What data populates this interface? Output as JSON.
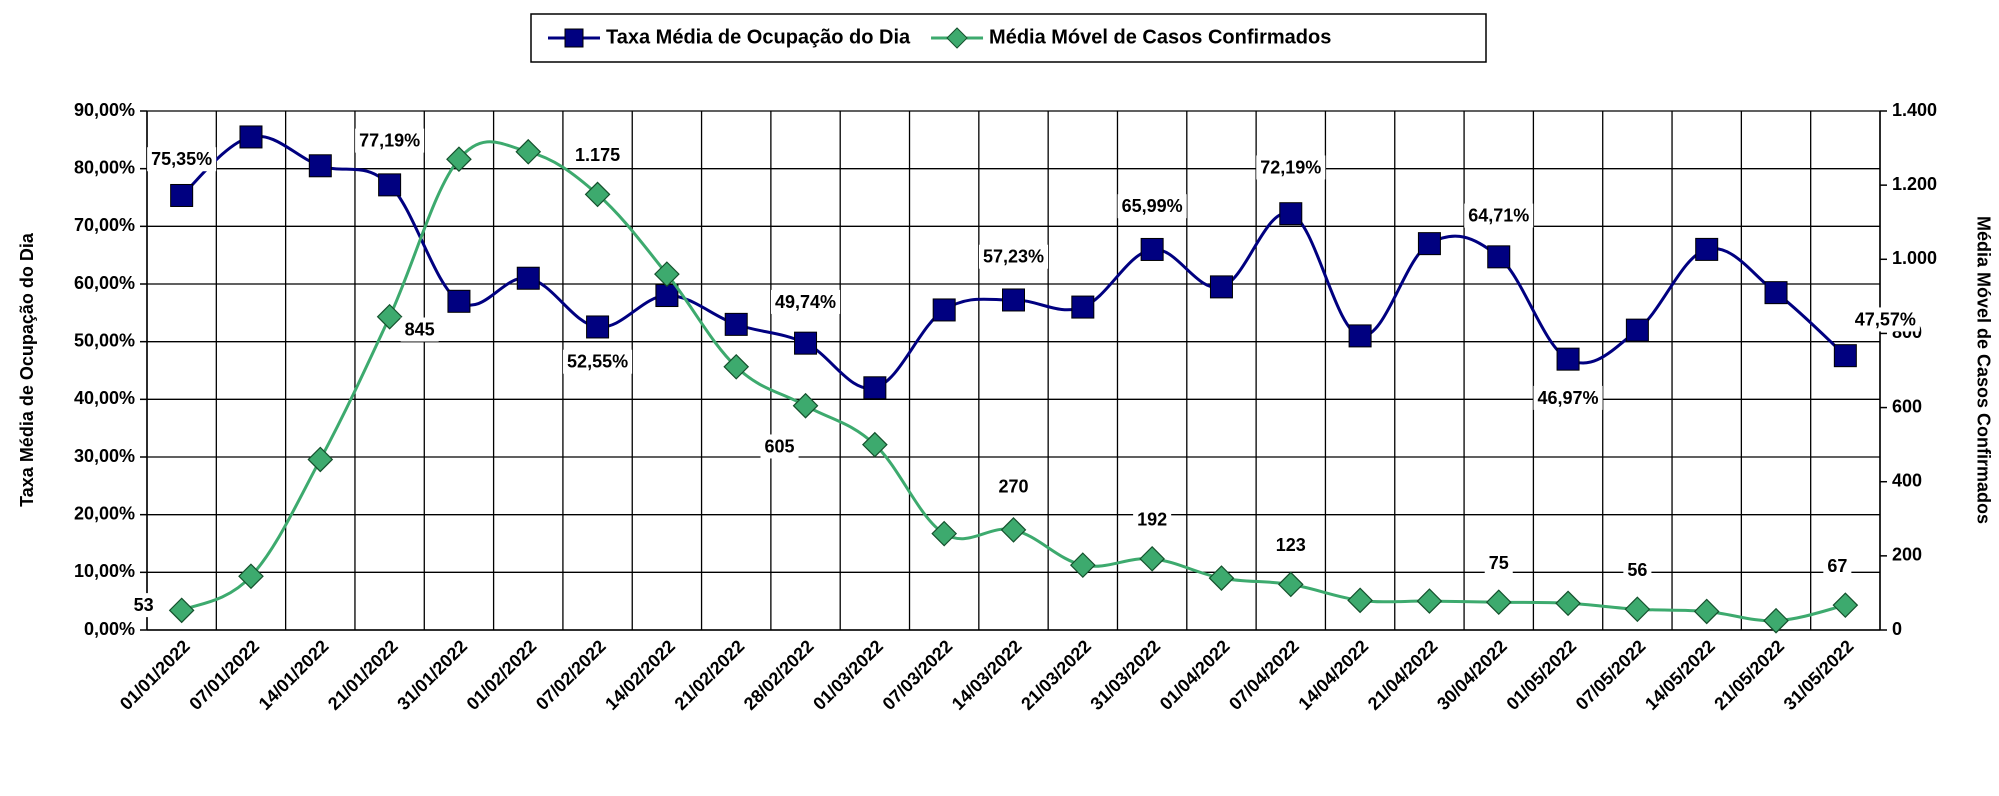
{
  "chart_data": {
    "type": "line",
    "categories": [
      "01/01/2022",
      "07/01/2022",
      "14/01/2022",
      "21/01/2022",
      "31/01/2022",
      "01/02/2022",
      "07/02/2022",
      "14/02/2022",
      "21/02/2022",
      "28/02/2022",
      "01/03/2022",
      "07/03/2022",
      "14/03/2022",
      "21/03/2022",
      "31/03/2022",
      "01/04/2022",
      "07/04/2022",
      "14/04/2022",
      "21/04/2022",
      "30/04/2022",
      "01/05/2022",
      "07/05/2022",
      "14/05/2022",
      "21/05/2022",
      "31/05/2022"
    ],
    "y_label": "Taxa Média de Ocupação do Dia",
    "y2_label": "Média Móvel de Casos Confirmados",
    "ylim": [
      0,
      90
    ],
    "yticks": [
      {
        "value": 0,
        "label": "0,00%"
      },
      {
        "value": 10,
        "label": "10,00%"
      },
      {
        "value": 20,
        "label": "20,00%"
      },
      {
        "value": 30,
        "label": "30,00%"
      },
      {
        "value": 40,
        "label": "40,00%"
      },
      {
        "value": 50,
        "label": "50,00%"
      },
      {
        "value": 60,
        "label": "60,00%"
      },
      {
        "value": 70,
        "label": "70,00%"
      },
      {
        "value": 80,
        "label": "80,00%"
      },
      {
        "value": 90,
        "label": "90,00%"
      }
    ],
    "y2lim": [
      0,
      1400
    ],
    "y2ticks": [
      0,
      200,
      400,
      600,
      800,
      {
        "value": 1000,
        "label": "1.000"
      },
      {
        "value": 1200,
        "label": "1.200"
      },
      {
        "value": 1400,
        "label": "1.400"
      }
    ],
    "grid": true,
    "legend": "top",
    "series": [
      {
        "name": "Taxa Média de Ocupação do Dia",
        "color": "#000080",
        "marker": "square",
        "values": [
          75.35,
          85.5,
          80.5,
          77.19,
          57,
          61,
          52.55,
          58,
          53,
          49.74,
          42,
          55.5,
          57.23,
          56,
          65.99,
          59.5,
          72.19,
          51,
          67,
          64.71,
          46.97,
          52,
          66,
          58.5,
          47.57
        ],
        "value_labels": [
          "75,35%",
          null,
          null,
          "77,19%",
          null,
          null,
          "52,55%",
          null,
          null,
          "49,74%",
          null,
          null,
          "57,23%",
          null,
          "65,99%",
          null,
          "72,19%",
          null,
          null,
          "64,71%",
          "46,97%",
          null,
          null,
          null,
          "47,57%"
        ]
      },
      {
        "name": "Média Móvel de Casos Confirmados",
        "color": "#3daa6e",
        "marker": "diamond",
        "axis": "y2",
        "values": [
          53,
          145,
          460,
          845,
          1270,
          1290,
          1175,
          960,
          710,
          605,
          500,
          260,
          270,
          175,
          192,
          140,
          123,
          80,
          78,
          75,
          72,
          56,
          50,
          25,
          67
        ],
        "value_labels": [
          "53",
          null,
          null,
          "845",
          null,
          null,
          "1.175",
          null,
          null,
          "605",
          null,
          null,
          "270",
          null,
          "192",
          null,
          "123",
          null,
          null,
          "75",
          null,
          "56",
          null,
          null,
          "67"
        ]
      }
    ]
  }
}
